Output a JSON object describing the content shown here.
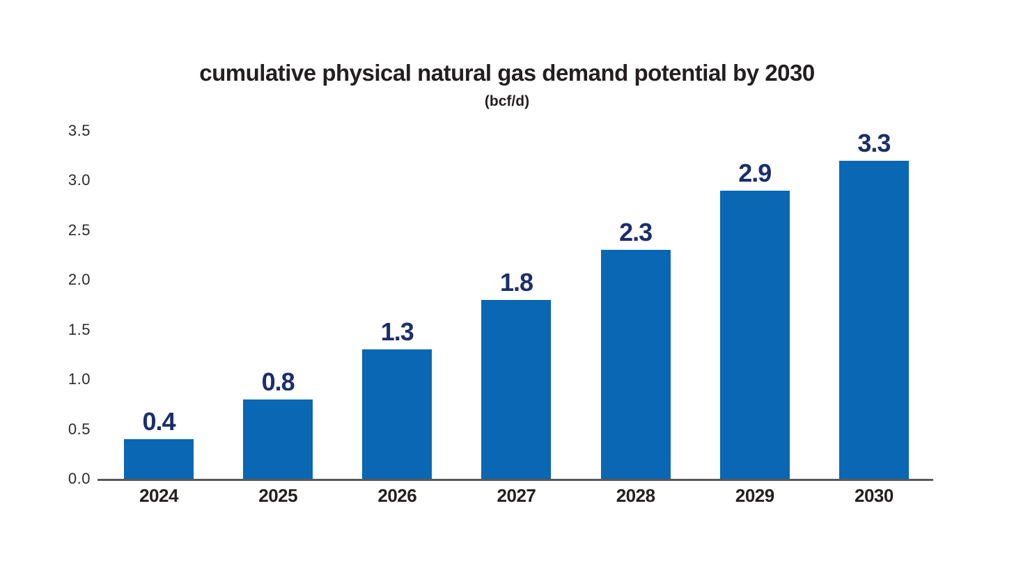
{
  "chart_data": {
    "type": "bar",
    "title": "cumulative physical natural gas demand potential by 2030",
    "subtitle": "(bcf/d)",
    "categories": [
      "2024",
      "2025",
      "2026",
      "2027",
      "2028",
      "2029",
      "2030"
    ],
    "values": [
      0.4,
      0.8,
      1.3,
      1.8,
      2.3,
      2.9,
      3.3
    ],
    "value_labels": [
      "0.4",
      "0.8",
      "1.3",
      "1.8",
      "2.3",
      "2.9",
      "3.3"
    ],
    "xlabel": "",
    "ylabel": "",
    "ylim": [
      0,
      3.5
    ],
    "yticks": [
      0.0,
      0.5,
      1.0,
      1.5,
      2.0,
      2.5,
      3.0,
      3.5
    ],
    "ytick_labels": [
      "0.0",
      "0.5",
      "1.0",
      "1.5",
      "2.0",
      "2.5",
      "3.0",
      "3.5"
    ],
    "grid": false,
    "legend": "none",
    "colors": {
      "bar": "#0a67b3",
      "value_label": "#1b2e6c",
      "axis_line": "#58595b",
      "tick_text": "#2b2b2d",
      "category_text": "#231f20",
      "title_text": "#231f20",
      "background": "#ffffff"
    }
  }
}
